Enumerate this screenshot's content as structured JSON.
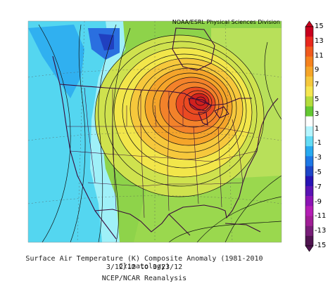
{
  "map": {
    "attribution": "NOAA/ESRL Physical Sciences Division",
    "title": "Surface Air Temperature (K) Composite Anomaly (1981-2010 Climatology)",
    "date_range": "3/12/12  to 3/23/12",
    "source": "NCEP/NCAR Reanalysis"
  },
  "colorbar": {
    "labels": [
      "15",
      "13",
      "11",
      "9",
      "7",
      "5",
      "3",
      "1",
      "-1",
      "-3",
      "-5",
      "-7",
      "-9",
      "-11",
      "-13",
      "-15"
    ],
    "colors": [
      "#c8001e",
      "#e8281e",
      "#f05a1e",
      "#f5821e",
      "#f5a528",
      "#f5c83c",
      "#f5e650",
      "#b4dc3c",
      "#64c832",
      "#ffffff",
      "#b4f5ff",
      "#64dcf5",
      "#28aaf0",
      "#1e78e6",
      "#1e46c8",
      "#2814b4",
      "#5a14b4",
      "#8c14b4",
      "#b41eb4",
      "#a01e96",
      "#781e78",
      "#501450"
    ]
  },
  "regions": {
    "warm_core": "Upper Midwest / Great Lakes",
    "cool_region": "Pacific Northwest / West Coast"
  }
}
